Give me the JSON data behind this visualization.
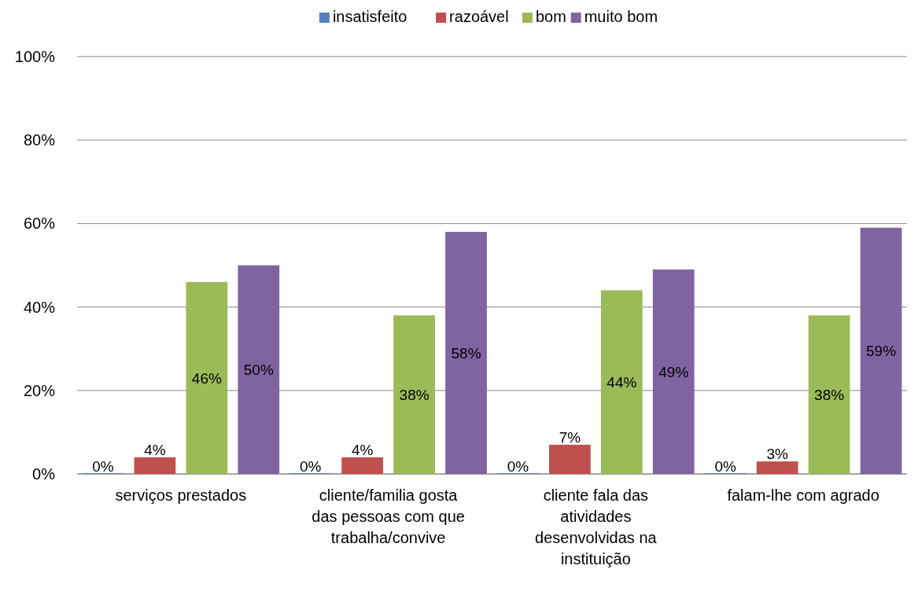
{
  "chart_data": {
    "type": "bar",
    "categories": [
      "serviços prestados",
      "cliente/familia gosta das pessoas com que trabalha/convive",
      "cliente fala das atividades desenvolvidas na instituição",
      "falam-lhe com agrado"
    ],
    "series": [
      {
        "name": "insatisfeito",
        "color": "#4f81bd",
        "values": [
          0,
          0,
          0,
          0
        ],
        "value_labels": [
          "0%",
          "0%",
          "0%",
          "0%"
        ]
      },
      {
        "name": "razoável",
        "color": "#c0504d",
        "values": [
          4,
          4,
          7,
          3
        ],
        "value_labels": [
          "4%",
          "4%",
          "7%",
          "3%"
        ]
      },
      {
        "name": "bom",
        "color": "#9bbb59",
        "values": [
          46,
          38,
          44,
          38
        ],
        "value_labels": [
          "46%",
          "38%",
          "44%",
          "38%"
        ]
      },
      {
        "name": "muito bom",
        "color": "#8064a2",
        "values": [
          50,
          58,
          49,
          59
        ],
        "value_labels": [
          "50%",
          "58%",
          "49%",
          "59%"
        ]
      }
    ],
    "ylim": [
      0,
      100
    ],
    "yticks": [
      {
        "value": 0,
        "label": "0%"
      },
      {
        "value": 20,
        "label": "20%"
      },
      {
        "value": 40,
        "label": "40%"
      },
      {
        "value": 60,
        "label": "60%"
      },
      {
        "value": 80,
        "label": "80%"
      },
      {
        "value": 100,
        "label": "100%"
      }
    ],
    "grid": "y",
    "legend": "top"
  }
}
